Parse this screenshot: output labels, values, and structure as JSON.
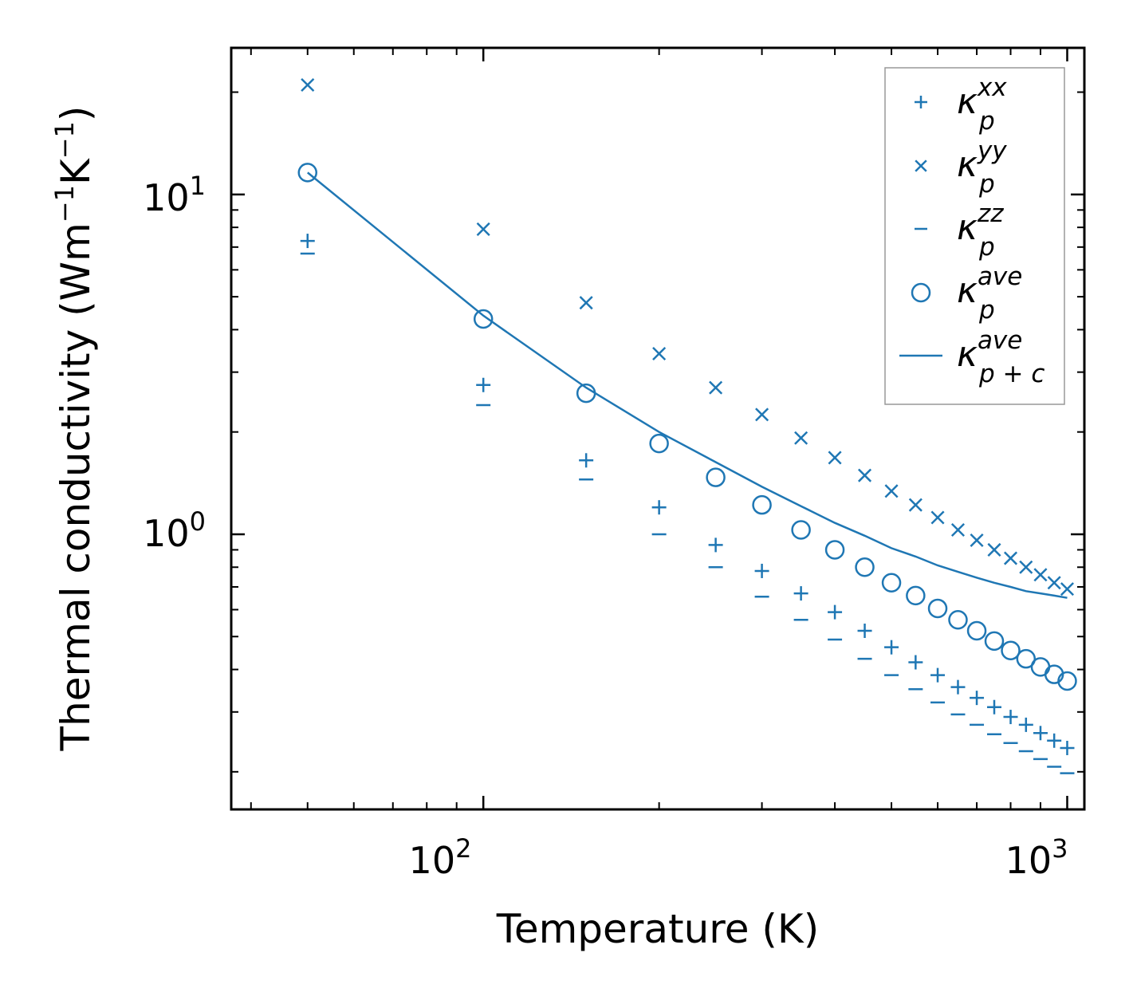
{
  "chart_data": {
    "type": "scatter",
    "title": "",
    "xlabel": "Temperature (K)",
    "ylabel": {
      "base": "Thermal conductivity (Wm",
      "exp1": "−1",
      "mid": "K",
      "exp2": "−1",
      "end": ")"
    },
    "xscale": "log",
    "yscale": "log",
    "xlim": [
      37,
      1070
    ],
    "ylim": [
      0.155,
      27
    ],
    "xticks": [
      {
        "value": 100,
        "base": "10",
        "exp": "2"
      },
      {
        "value": 1000,
        "base": "10",
        "exp": "3"
      }
    ],
    "yticks": [
      {
        "value": 1,
        "base": "10",
        "exp": "0"
      },
      {
        "value": 10,
        "base": "10",
        "exp": "1"
      }
    ],
    "legend_position": "top-right",
    "color": "#1f77b4",
    "x": [
      50,
      100,
      150,
      200,
      250,
      300,
      350,
      400,
      450,
      500,
      550,
      600,
      650,
      700,
      750,
      800,
      850,
      900,
      950,
      1000
    ],
    "series": [
      {
        "name": "κ_p^xx",
        "label_base": "κ",
        "label_sub": "p",
        "label_sup": "xx",
        "marker": "plus",
        "values": [
          7.3,
          2.75,
          1.65,
          1.2,
          0.93,
          0.78,
          0.67,
          0.59,
          0.52,
          0.465,
          0.42,
          0.385,
          0.355,
          0.33,
          0.31,
          0.29,
          0.275,
          0.26,
          0.247,
          0.235
        ]
      },
      {
        "name": "κ_p^yy",
        "label_base": "κ",
        "label_sub": "p",
        "label_sup": "yy",
        "marker": "x",
        "values": [
          21.0,
          7.9,
          4.8,
          3.4,
          2.7,
          2.25,
          1.92,
          1.68,
          1.49,
          1.34,
          1.22,
          1.12,
          1.03,
          0.96,
          0.9,
          0.85,
          0.8,
          0.76,
          0.72,
          0.69
        ]
      },
      {
        "name": "κ_p^zz",
        "label_base": "κ",
        "label_sub": "p",
        "label_sup": "zz",
        "marker": "minus",
        "values": [
          6.7,
          2.4,
          1.45,
          1.0,
          0.8,
          0.655,
          0.56,
          0.49,
          0.43,
          0.385,
          0.35,
          0.32,
          0.295,
          0.275,
          0.258,
          0.243,
          0.23,
          0.218,
          0.207,
          0.198
        ]
      },
      {
        "name": "κ_p^ave",
        "label_base": "κ",
        "label_sub": "p",
        "label_sup": "ave",
        "marker": "circle",
        "values": [
          11.6,
          4.3,
          2.6,
          1.85,
          1.47,
          1.22,
          1.03,
          0.9,
          0.8,
          0.72,
          0.66,
          0.605,
          0.56,
          0.52,
          0.485,
          0.455,
          0.43,
          0.407,
          0.387,
          0.37
        ]
      },
      {
        "name": "κ_p+c^ave",
        "label_base": "κ",
        "label_sub": "p + c",
        "label_sup": "ave",
        "marker": "line",
        "values": [
          11.6,
          4.4,
          2.7,
          2.0,
          1.63,
          1.38,
          1.21,
          1.08,
          0.99,
          0.91,
          0.86,
          0.81,
          0.775,
          0.745,
          0.72,
          0.7,
          0.68,
          0.67,
          0.66,
          0.65
        ]
      }
    ]
  }
}
